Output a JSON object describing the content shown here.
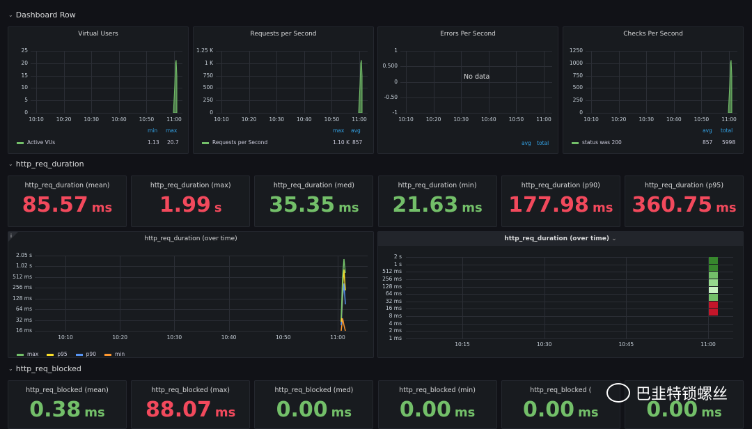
{
  "rows": {
    "dashboard": "Dashboard Row",
    "req_duration": "http_req_duration",
    "req_blocked": "http_req_blocked"
  },
  "top_panels": [
    {
      "title": "Virtual Users",
      "yticks": [
        "25",
        "20",
        "15",
        "10",
        "5",
        "0"
      ],
      "xticks": [
        "10:10",
        "10:20",
        "10:30",
        "10:40",
        "10:50",
        "11:00"
      ],
      "legend_headers": [
        "min",
        "max"
      ],
      "legend_name": "Active VUs",
      "legend_values": [
        "1.13",
        "20.7"
      ]
    },
    {
      "title": "Requests per Second",
      "yticks": [
        "1.25 K",
        "1 K",
        "750",
        "500",
        "250",
        "0"
      ],
      "xticks": [
        "10:10",
        "10:20",
        "10:30",
        "10:40",
        "10:50",
        "11:00"
      ],
      "legend_headers": [
        "max",
        "avg"
      ],
      "legend_name": "Requests per Second",
      "legend_values": [
        "1.10 K",
        "857"
      ]
    },
    {
      "title": "Errors Per Second",
      "yticks": [
        "1",
        "0.500",
        "0",
        "-0.50",
        "-1"
      ],
      "xticks": [
        "10:10",
        "10:20",
        "10:30",
        "10:40",
        "10:50",
        "11:00"
      ],
      "legend_headers": [
        "avg",
        "total"
      ],
      "nodata": "No data"
    },
    {
      "title": "Checks Per Second",
      "yticks": [
        "1250",
        "1000",
        "750",
        "500",
        "250",
        "0"
      ],
      "xticks": [
        "10:10",
        "10:20",
        "10:30",
        "10:40",
        "10:50",
        "11:00"
      ],
      "legend_headers": [
        "avg",
        "total"
      ],
      "legend_name": "status was 200",
      "legend_values": [
        "857",
        "5998"
      ]
    }
  ],
  "duration_stats": [
    {
      "title": "http_req_duration (mean)",
      "value": "85.57",
      "unit": "ms",
      "color": "#f2495c"
    },
    {
      "title": "http_req_duration (max)",
      "value": "1.99",
      "unit": "s",
      "color": "#f2495c"
    },
    {
      "title": "http_req_duration (med)",
      "value": "35.35",
      "unit": "ms",
      "color": "#73bf69"
    },
    {
      "title": "http_req_duration (min)",
      "value": "21.63",
      "unit": "ms",
      "color": "#73bf69"
    },
    {
      "title": "http_req_duration (p90)",
      "value": "177.98",
      "unit": "ms",
      "color": "#f2495c"
    },
    {
      "title": "http_req_duration (p95)",
      "value": "360.75",
      "unit": "ms",
      "color": "#f2495c"
    }
  ],
  "over_time_left": {
    "title": "http_req_duration (over time)",
    "info_icon": "i",
    "yticks": [
      "2.05 s",
      "1.02 s",
      "512 ms",
      "256 ms",
      "128 ms",
      "64 ms",
      "32 ms",
      "16 ms"
    ],
    "xticks": [
      "10:10",
      "10:20",
      "10:30",
      "10:40",
      "10:50",
      "11:00"
    ],
    "legend": [
      {
        "name": "max",
        "color": "#73bf69"
      },
      {
        "name": "p95",
        "color": "#fade2a"
      },
      {
        "name": "p90",
        "color": "#5794f2"
      },
      {
        "name": "min",
        "color": "#ff9830"
      }
    ]
  },
  "over_time_right": {
    "title": "http_req_duration (over time)",
    "chevron": "⌄",
    "yticks": [
      "2 s",
      "1 s",
      "512 ms",
      "256 ms",
      "128 ms",
      "64 ms",
      "32 ms",
      "16 ms",
      "8 ms",
      "4 ms",
      "2 ms",
      "1 ms"
    ],
    "xticks": [
      "10:15",
      "10:30",
      "10:45",
      "11:00"
    ],
    "heat_colors": [
      "#37872d",
      "#37872d",
      "#73bf69",
      "#96d98d",
      "#c8f2c2",
      "#73bf69",
      "#c4162a",
      "#c4162a"
    ]
  },
  "blocked_stats": [
    {
      "title": "http_req_blocked (mean)",
      "value": "0.38",
      "unit": "ms",
      "color": "#73bf69"
    },
    {
      "title": "http_req_blocked (max)",
      "value": "88.07",
      "unit": "ms",
      "color": "#f2495c"
    },
    {
      "title": "http_req_blocked (med)",
      "value": "0.00",
      "unit": "ms",
      "color": "#73bf69"
    },
    {
      "title": "http_req_blocked (min)",
      "value": "0.00",
      "unit": "ms",
      "color": "#73bf69"
    },
    {
      "title": "http_req_blocked (",
      "value": "0.00",
      "unit": "ms",
      "color": "#73bf69"
    },
    {
      "title": "",
      "value": "0.00",
      "unit": "ms",
      "color": "#73bf69"
    }
  ],
  "watermark": "巴韭特锁螺丝"
}
